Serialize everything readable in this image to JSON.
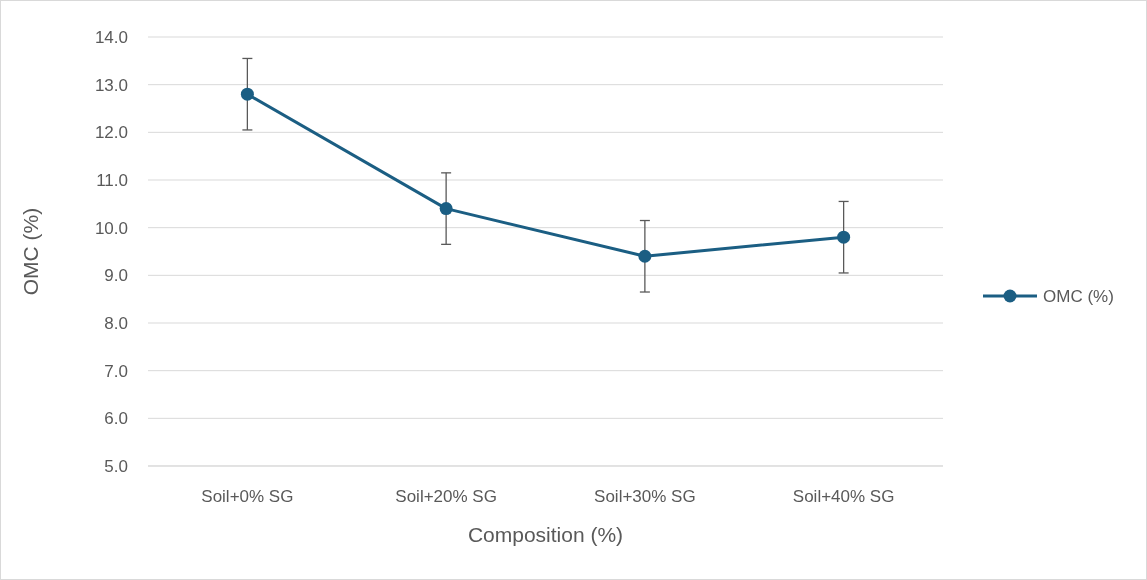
{
  "chart_data": {
    "type": "line",
    "xlabel": "Composition (%)",
    "ylabel": "OMC (%)",
    "categories": [
      "Soil+0% SG",
      "Soil+20% SG",
      "Soil+30% SG",
      "Soil+40% SG"
    ],
    "series": [
      {
        "name": "OMC (%)",
        "color": "#1b5e83",
        "values": [
          12.8,
          10.4,
          9.4,
          9.8
        ],
        "errors": [
          0.75,
          0.75,
          0.75,
          0.75
        ]
      }
    ],
    "ylim": [
      5,
      14
    ],
    "yticks": [
      {
        "value": 5,
        "label": "5.0"
      },
      {
        "value": 6,
        "label": "6.0"
      },
      {
        "value": 7,
        "label": "7.0"
      },
      {
        "value": 8,
        "label": "8.0"
      },
      {
        "value": 9,
        "label": "9.0"
      },
      {
        "value": 10,
        "label": "10.0"
      },
      {
        "value": 11,
        "label": "11.0"
      },
      {
        "value": 12,
        "label": "12.0"
      },
      {
        "value": 13,
        "label": "13.0"
      },
      {
        "value": 14,
        "label": "14.0"
      }
    ],
    "grid": "y",
    "legend": "right",
    "marker": "circle",
    "line_style": "solid"
  }
}
